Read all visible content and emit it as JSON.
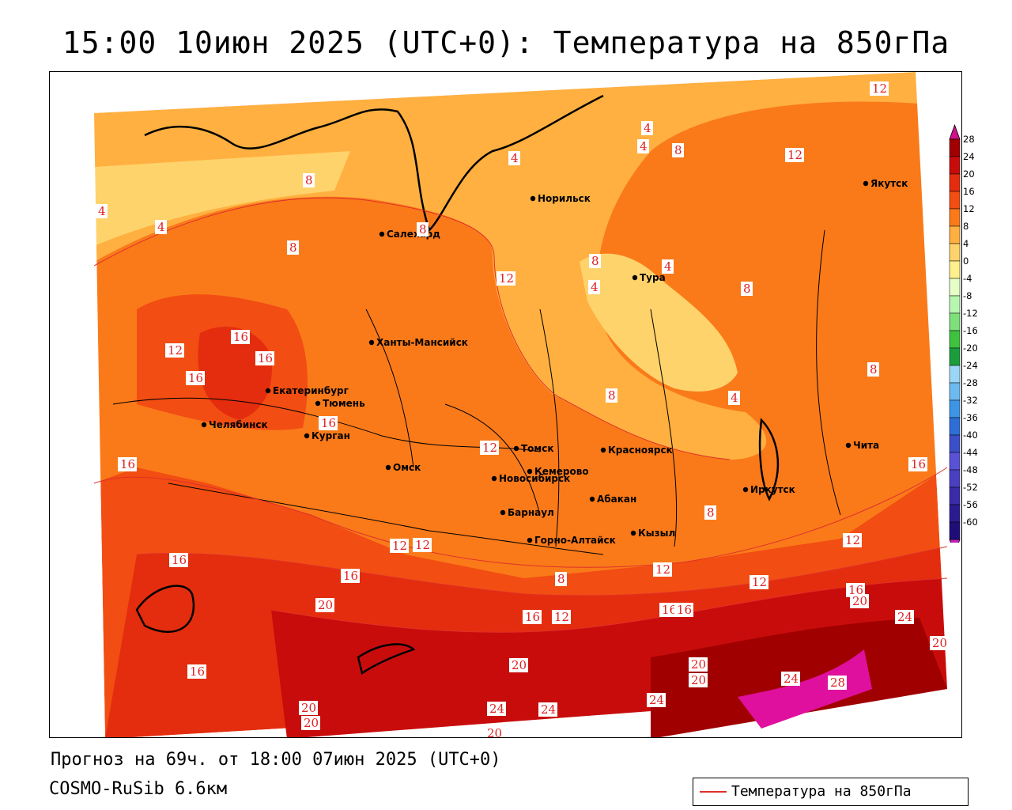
{
  "title": "15:00 10июн 2025 (UTC+0): Температура на 850гПа",
  "footer": {
    "forecast": "Прогноз на 69ч. от 18:00 07июн 2025 (UTC+0)",
    "model": "COSMO-RuSib 6.6км"
  },
  "legend": {
    "label": "Температура на 850гПа",
    "line_color": "#e0302a"
  },
  "colorbar": {
    "labels": [
      "28",
      "24",
      "20",
      "16",
      "12",
      "8",
      "4",
      "0",
      "-4",
      "-8",
      "-12",
      "-16",
      "-20",
      "-24",
      "-28",
      "-32",
      "-36",
      "-40",
      "-44",
      "-48",
      "-52",
      "-56",
      "-60"
    ],
    "colors": [
      "#a00000",
      "#c80c0c",
      "#e32d0e",
      "#f24d12",
      "#fa7a1a",
      "#ffb040",
      "#ffd36b",
      "#fff08e",
      "#e6ffc8",
      "#b7f5b0",
      "#7ee07a",
      "#3fc33f",
      "#1a9e3c",
      "#9bd7f5",
      "#6cbaf0",
      "#3d95e5",
      "#2d6fd6",
      "#3b4fc8",
      "#5a52d4",
      "#4a3fc0",
      "#3b2ba8",
      "#2b1b90",
      "#1f0e78"
    ]
  },
  "cities": [
    {
      "name": "Норильск"
    },
    {
      "name": "Салехард"
    },
    {
      "name": "Якутск"
    },
    {
      "name": "Тура"
    },
    {
      "name": "Ханты-Мансийск"
    },
    {
      "name": "Екатеринбург"
    },
    {
      "name": "Тюмень"
    },
    {
      "name": "Челябинск"
    },
    {
      "name": "Курган"
    },
    {
      "name": "Омск"
    },
    {
      "name": "Новосибирск"
    },
    {
      "name": "Томск"
    },
    {
      "name": "Красноярск"
    },
    {
      "name": "Кемерово"
    },
    {
      "name": "Барнаул"
    },
    {
      "name": "Абакан"
    },
    {
      "name": "Иркутск"
    },
    {
      "name": "Чита"
    },
    {
      "name": "Кызыл"
    },
    {
      "name": "Горно-Алтайск"
    }
  ],
  "isotherm_labels": [
    "12",
    "4",
    "4",
    "8",
    "12",
    "4",
    "8",
    "4",
    "8",
    "4",
    "8",
    "12",
    "8",
    "4",
    "4",
    "8",
    "16",
    "16",
    "12",
    "16",
    "16",
    "8",
    "4",
    "8",
    "16",
    "12",
    "16",
    "12",
    "12",
    "16",
    "12",
    "12",
    "8",
    "12",
    "16",
    "8",
    "16",
    "20",
    "16",
    "12",
    "16",
    "16",
    "20",
    "24",
    "20",
    "20",
    "20",
    "20",
    "24",
    "24",
    "16",
    "24",
    "28",
    "24",
    "20",
    "20",
    "20"
  ]
}
